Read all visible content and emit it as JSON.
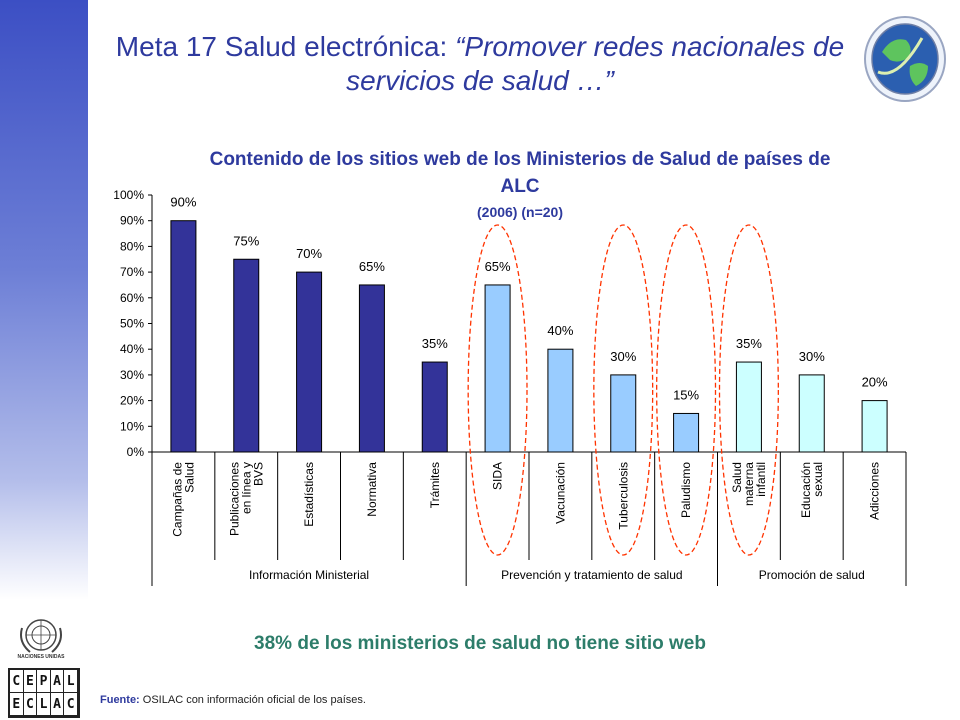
{
  "slide": {
    "title_part1": "Meta 17 Salud electrónica: ",
    "title_quote": "“Promover redes nacionales de servicios de salud …”",
    "highlight": "38% de los ministerios de salud no tiene sitio web",
    "source_label": "Fuente:",
    "source_text": " OSILAC con información oficial de los países."
  },
  "logos": {
    "un_text": "NACIONES UNIDAS",
    "cepal_letters": [
      "C",
      "E",
      "P",
      "A",
      "L"
    ],
    "eclac_letters": [
      "E",
      "C",
      "L",
      "A",
      "C"
    ]
  },
  "colors": {
    "accent": "#2e3a9e",
    "dark_bar": "#333399",
    "light_blue_bar": "#99ccff",
    "pale_cyan_bar": "#ccffff",
    "highlight_green": "#2d7d6a",
    "circle_red": "#ff3300"
  },
  "chart_data": {
    "type": "bar",
    "title": "Contenido de los sitios web de los Ministerios de Salud de países de ALC",
    "subtitle": "(2006) (n=20)",
    "ylim": [
      0,
      100
    ],
    "y_ticks": [
      "0%",
      "10%",
      "20%",
      "30%",
      "40%",
      "50%",
      "60%",
      "70%",
      "80%",
      "90%",
      "100%"
    ],
    "categories": [
      [
        "Campañas de",
        "Salud"
      ],
      [
        "Publicaciones",
        "en línea y",
        "BVS"
      ],
      [
        "Estadísticas"
      ],
      [
        "Normativa"
      ],
      [
        "Trámites"
      ],
      [
        "SIDA"
      ],
      [
        "Vacunación"
      ],
      [
        "Tuberculosis"
      ],
      [
        "Paludismo"
      ],
      [
        "Salud",
        "materna",
        "infantil"
      ],
      [
        "Educación",
        "sexual"
      ],
      [
        "Adicciones"
      ]
    ],
    "values": [
      90,
      75,
      70,
      65,
      35,
      65,
      40,
      30,
      15,
      35,
      30,
      20
    ],
    "value_labels": [
      "90%",
      "75%",
      "70%",
      "65%",
      "35%",
      "65%",
      "40%",
      "30%",
      "15%",
      "35%",
      "30%",
      "20%"
    ],
    "bar_colors": [
      "#333399",
      "#333399",
      "#333399",
      "#333399",
      "#333399",
      "#99ccff",
      "#99ccff",
      "#99ccff",
      "#99ccff",
      "#ccffff",
      "#ccffff",
      "#ccffff"
    ],
    "groups": [
      {
        "label": "Información Ministerial",
        "start": 0,
        "end": 4
      },
      {
        "label": "Prevención y tratamiento de salud",
        "start": 5,
        "end": 8
      },
      {
        "label": "Promoción de salud",
        "start": 9,
        "end": 11
      }
    ],
    "circled_categories": [
      5,
      7,
      8,
      9
    ],
    "grid": false
  }
}
